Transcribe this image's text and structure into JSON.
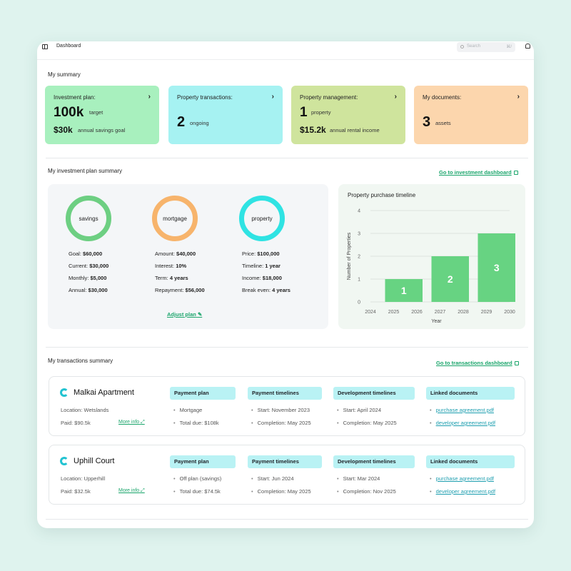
{
  "window": {
    "title": "Dashboard"
  },
  "search": {
    "placeholder": "Search",
    "shortcut": "⌘/"
  },
  "summary": {
    "title": "My summary",
    "cards": [
      {
        "label": "Investment plan:",
        "big1": "100k",
        "small1": "target",
        "big2": "$30k",
        "small2": "annual savings goal",
        "color": "#a8f0be"
      },
      {
        "label": "Property transactions:",
        "big1": "2",
        "small1": "ongoing",
        "color": "#a6f2f2"
      },
      {
        "label": "Property management:",
        "big1": "1",
        "small1": "property",
        "big2": "$15.2k",
        "small2": "annual rental income",
        "color": "#cfe49d"
      },
      {
        "label": "My documents:",
        "big1": "3",
        "small1": "assets",
        "color": "#fcd6ad"
      }
    ]
  },
  "investment": {
    "title": "My investment plan summary",
    "link": "Go to investment dashboard",
    "rings": [
      {
        "label": "savings",
        "color": "#6dcf82",
        "stats": [
          [
            "Goal:",
            "$60,000"
          ],
          [
            "Current:",
            "$30,000"
          ],
          [
            "Monthly:",
            "$5,000"
          ],
          [
            "Annual:",
            "$30,000"
          ]
        ]
      },
      {
        "label": "mortgage",
        "color": "#f7b46c",
        "stats": [
          [
            "Amount:",
            "$40,000"
          ],
          [
            "Interest:",
            "10%"
          ],
          [
            "Term:",
            "4 years"
          ],
          [
            "Repayment:",
            "$56,000"
          ]
        ]
      },
      {
        "label": "property",
        "color": "#2fe3e3",
        "stats": [
          [
            "Price:",
            "$100,000"
          ],
          [
            "Timeline:",
            "1 year"
          ],
          [
            "Income:",
            "$18,000"
          ],
          [
            "Break even:",
            "4 years"
          ]
        ]
      }
    ],
    "adjust": "Adjust plan"
  },
  "chart_data": {
    "type": "bar",
    "title": "Property purchase timeline",
    "xlabel": "Year",
    "ylabel": "Number of Properties",
    "x_ticks": [
      "2024",
      "2025",
      "2026",
      "2027",
      "2028",
      "2029",
      "2030"
    ],
    "y_ticks": [
      "0",
      "1",
      "2",
      "3",
      "4"
    ],
    "ylim": [
      0,
      4
    ],
    "bars": [
      {
        "from": 2025,
        "to": 2026,
        "value": 1,
        "label": "1"
      },
      {
        "from": 2027,
        "to": 2028,
        "value": 2,
        "label": "2"
      },
      {
        "from": 2029,
        "to": 2030,
        "value": 3,
        "label": "3"
      }
    ],
    "bar_color": "#67d382",
    "grid": true
  },
  "transactions": {
    "title": "My transactions summary",
    "link": "Go to transactions dashboard",
    "items": [
      {
        "name": "Malkai Apartment",
        "location": "Location: Wetslands",
        "paid": "Paid: $90.5k",
        "more": "More info",
        "payment_plan": {
          "head": "Payment plan",
          "lines": [
            "Mortgage",
            "Total due: $108k"
          ]
        },
        "payment_timelines": {
          "head": "Payment timelines",
          "lines": [
            "Start: November 2023",
            "Completion: May 2025"
          ]
        },
        "dev_timelines": {
          "head": "Development timelines",
          "lines": [
            "Start: April 2024",
            "Completion: May 2025"
          ]
        },
        "docs": {
          "head": "Linked documents",
          "lines": [
            "purchase agreement.pdf",
            "developer agreement.pdf"
          ]
        }
      },
      {
        "name": "Uphill Court",
        "location": "Location: Upperhill",
        "paid": "Paid: $32.5k",
        "more": "More info",
        "payment_plan": {
          "head": "Payment plan",
          "lines": [
            "Off plan (savings)",
            "Total due: $74.5k"
          ]
        },
        "payment_timelines": {
          "head": "Payment timelines",
          "lines": [
            "Start: Jun 2024",
            "Completion: May 2025"
          ]
        },
        "dev_timelines": {
          "head": "Development timelines",
          "lines": [
            "Start: Mar 2024",
            "Completion: Nov 2025"
          ]
        },
        "docs": {
          "head": "Linked documents",
          "lines": [
            "purchase agreement.pdf",
            "developer agreement.pdf"
          ]
        }
      }
    ]
  }
}
